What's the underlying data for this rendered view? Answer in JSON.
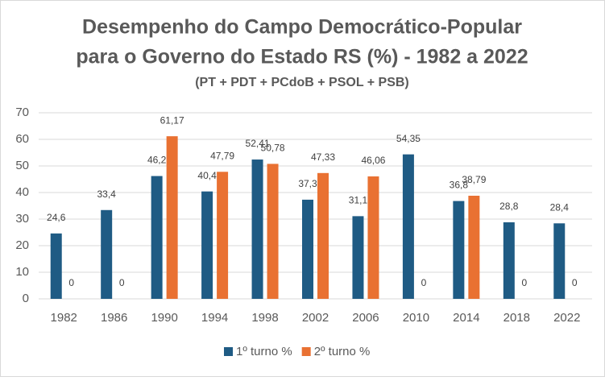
{
  "chart_data": {
    "type": "bar",
    "title": [
      "Desempenho do Campo Democrático-Popular",
      "para o Governo do Estado RS (%) - 1982 a 2022"
    ],
    "subtitle": "(PT + PDT + PCdoB + PSOL + PSB)",
    "categories": [
      "1982",
      "1986",
      "1990",
      "1994",
      "1998",
      "2002",
      "2006",
      "2010",
      "2014",
      "2018",
      "2022"
    ],
    "series": [
      {
        "name": "1º turno %",
        "color": "#1f5b84",
        "values": [
          24.6,
          33.4,
          46.2,
          40.4,
          52.41,
          37.3,
          31.1,
          54.35,
          36.8,
          28.8,
          28.4
        ],
        "value_labels": [
          "24,6",
          "33,4",
          "46,2",
          "40,4",
          "52,41",
          "37,3",
          "31,1",
          "54,35",
          "36,8",
          "28,8",
          "28,4"
        ]
      },
      {
        "name": "2º turno %",
        "color": "#e97132",
        "values": [
          0,
          0,
          61.17,
          47.79,
          50.78,
          47.33,
          46.06,
          0,
          38.79,
          0,
          0
        ],
        "value_labels": [
          "0",
          "0",
          "61,17",
          "47,79",
          "50,78",
          "47,33",
          "46,06",
          "0",
          "38,79",
          "0",
          "0"
        ]
      }
    ],
    "ylim": [
      0,
      70
    ],
    "yticks": [
      0,
      10,
      20,
      30,
      40,
      50,
      60,
      70
    ],
    "grid": true,
    "legend": "bottom"
  }
}
